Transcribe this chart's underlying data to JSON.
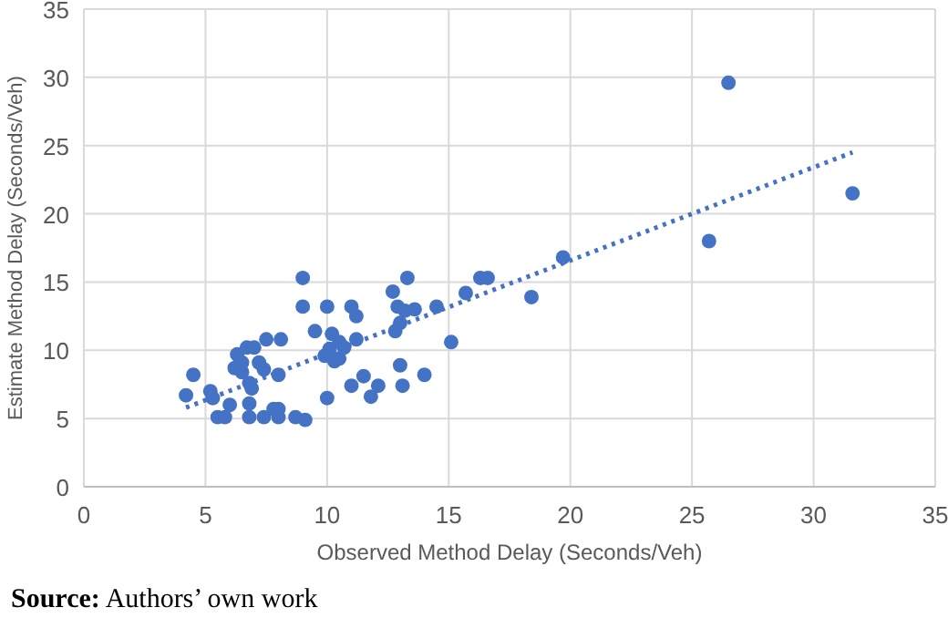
{
  "chart_data": {
    "type": "scatter",
    "xlabel": "Observed Method Delay (Seconds/Veh)",
    "ylabel": "Estimate Method Delay (Seconds/Veh)",
    "xlim": [
      0,
      35
    ],
    "xticks": [
      0,
      5,
      10,
      15,
      20,
      25,
      30,
      35
    ],
    "ylim": [
      0,
      35
    ],
    "yticks": [
      0,
      5,
      10,
      15,
      20,
      25,
      30,
      35
    ],
    "grid": true,
    "marker": "circle",
    "annotations": [
      "Source: Authors’ own work"
    ],
    "series": [
      {
        "color": "#4472c4",
        "x": [
          4.2,
          4.5,
          5.2,
          5.3,
          5.5,
          5.8,
          6.0,
          6.2,
          6.3,
          6.5,
          6.5,
          6.7,
          6.8,
          6.8,
          6.8,
          6.9,
          7.0,
          7.2,
          7.4,
          7.4,
          7.5,
          7.8,
          8.0,
          8.0,
          8.1,
          8.0,
          8.7,
          9.1,
          9.0,
          9.0,
          9.5,
          10.0,
          9.9,
          10.1,
          10.2,
          10.0,
          10.3,
          10.5,
          10.5,
          10.7,
          11.0,
          11.2,
          11.2,
          11.0,
          11.5,
          11.8,
          12.1,
          12.7,
          12.8,
          13.0,
          12.9,
          13.0,
          13.1,
          13.2,
          13.3,
          13.6,
          14.0,
          14.5,
          15.1,
          15.7,
          16.3,
          16.6,
          18.4,
          19.7,
          25.7,
          26.5,
          31.6
        ],
        "values": [
          6.7,
          8.2,
          7.0,
          6.5,
          5.1,
          5.1,
          6.0,
          8.7,
          9.7,
          8.4,
          9.1,
          10.2,
          7.6,
          6.1,
          5.1,
          7.2,
          10.2,
          9.1,
          8.6,
          5.1,
          10.8,
          5.7,
          5.7,
          5.1,
          10.8,
          8.2,
          5.1,
          4.9,
          15.3,
          13.2,
          11.4,
          13.2,
          9.6,
          10.1,
          11.2,
          6.5,
          9.2,
          10.6,
          9.4,
          10.2,
          13.2,
          12.5,
          10.8,
          7.4,
          8.1,
          6.6,
          7.4,
          14.3,
          11.4,
          12.0,
          13.2,
          8.9,
          7.4,
          12.9,
          15.3,
          13.0,
          8.2,
          13.2,
          10.6,
          14.2,
          15.3,
          15.3,
          13.9,
          16.8,
          18.0,
          29.6,
          21.5
        ]
      },
      {
        "type": "line",
        "color": "#4472c4",
        "line_style": "dotted",
        "marker": "none",
        "x": [
          4.2,
          31.6
        ],
        "values": [
          5.8,
          24.5
        ]
      }
    ]
  }
}
